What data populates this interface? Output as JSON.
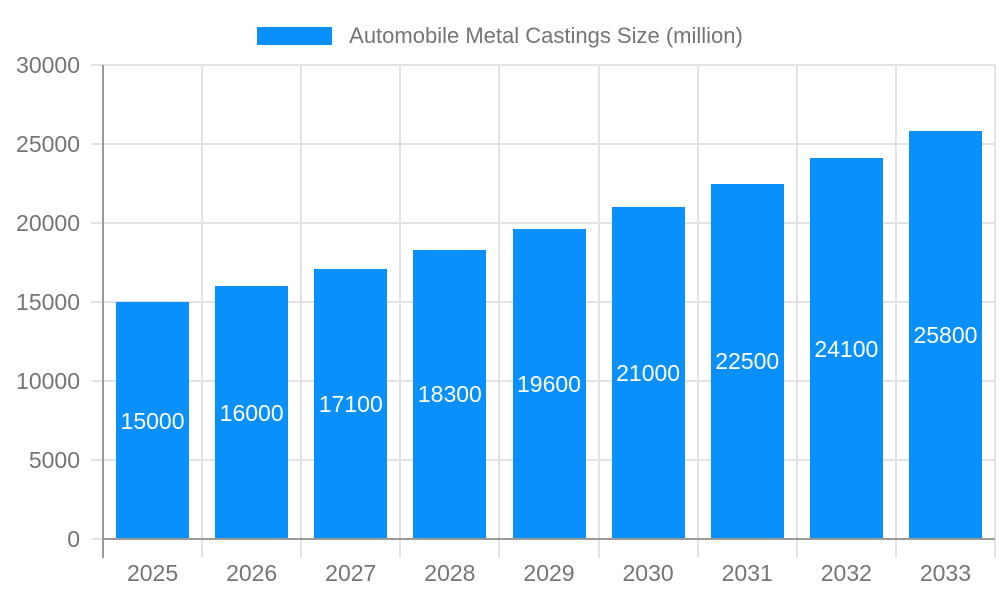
{
  "chart_data": {
    "type": "bar",
    "title": "Automobile Metal Castings Size (million)",
    "legend": {
      "position": "top",
      "entries": [
        "Automobile Metal Castings Size (million)"
      ]
    },
    "categories": [
      "2025",
      "2026",
      "2027",
      "2028",
      "2029",
      "2030",
      "2031",
      "2032",
      "2033"
    ],
    "series": [
      {
        "name": "Automobile Metal Castings Size (million)",
        "values": [
          15000,
          16000,
          17100,
          18300,
          19600,
          21000,
          22500,
          24100,
          25800
        ]
      }
    ],
    "value_labels": [
      "15000",
      "16000",
      "17100",
      "18300",
      "19600",
      "21000",
      "22500",
      "24100",
      "25800"
    ],
    "xlabel": "",
    "ylabel": "",
    "ylim": [
      0,
      30000
    ],
    "ytick_step": 5000,
    "ytick_labels": [
      "0",
      "5000",
      "10000",
      "15000",
      "20000",
      "25000",
      "30000"
    ],
    "grid": true,
    "colors": {
      "bar": "#0a90fa",
      "value_label_text": "#ffffff",
      "axis_text": "#757575",
      "gridline": "#e3e3e3",
      "axis_line": "#9a9a9a"
    }
  }
}
